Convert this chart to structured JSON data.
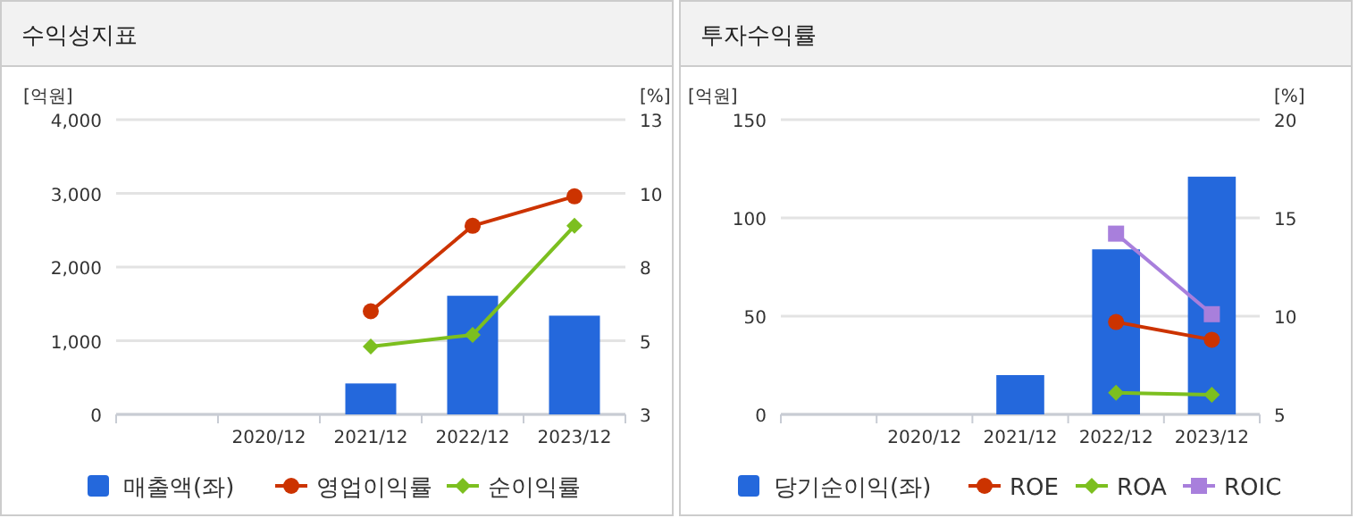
{
  "chart_data": [
    {
      "type": "bar",
      "title": "수익성지표",
      "ylabel": "[억원]",
      "y2label": "[%]",
      "categories": [
        null,
        "2020/12",
        "2021/12",
        "2022/12",
        "2023/12"
      ],
      "series": [
        {
          "name": "매출액(좌)",
          "color": "#2468dc",
          "values": [
            null,
            null,
            420,
            1610,
            1340
          ]
        },
        {
          "name": "영업이익률",
          "type": "line",
          "axis": "y2",
          "marker": "circle",
          "color": "#cc3300",
          "values": [
            null,
            null,
            6.5,
            9.4,
            10.4
          ]
        },
        {
          "name": "순이익률",
          "type": "line",
          "axis": "y2",
          "marker": "diamond",
          "color": "#7cbf1f",
          "values": [
            null,
            null,
            5.3,
            5.7,
            9.4
          ]
        }
      ],
      "ylim": [
        0,
        4000
      ],
      "yticks": [
        0,
        {
          "value": 1000,
          "label": "1,000"
        },
        {
          "value": 2000,
          "label": "2,000"
        },
        {
          "value": 3000,
          "label": "3,000"
        },
        {
          "value": 4000,
          "label": "4,000"
        }
      ],
      "y2lim": [
        3,
        13
      ],
      "y2ticks": [
        3,
        {
          "value": 5.5,
          "label": "5"
        },
        8,
        {
          "value": 10.5,
          "label": "10"
        },
        13
      ],
      "grid": "y",
      "legend": "bottom"
    },
    {
      "type": "bar",
      "title": "투자수익률",
      "ylabel": "[억원]",
      "y2label": "[%]",
      "categories": [
        null,
        "2020/12",
        "2021/12",
        "2022/12",
        "2023/12"
      ],
      "series": [
        {
          "name": "당기순이익(좌)",
          "color": "#2468dc",
          "values": [
            null,
            null,
            20,
            84,
            121
          ]
        },
        {
          "name": "ROE",
          "type": "line",
          "axis": "y2",
          "marker": "circle",
          "color": "#cc3300",
          "values": [
            null,
            null,
            null,
            9.7,
            8.8
          ]
        },
        {
          "name": "ROA",
          "type": "line",
          "axis": "y2",
          "marker": "diamond",
          "color": "#7cbf1f",
          "values": [
            null,
            null,
            null,
            6.1,
            6.0
          ]
        },
        {
          "name": "ROIC",
          "type": "line",
          "axis": "y2",
          "marker": "square",
          "color": "#a87fdc",
          "values": [
            null,
            null,
            null,
            14.2,
            10.1
          ]
        }
      ],
      "ylim": [
        0,
        150
      ],
      "yticks": [
        0,
        50,
        100,
        150
      ],
      "y2lim": [
        5,
        20
      ],
      "y2ticks": [
        5,
        10,
        15,
        20
      ],
      "grid": "y",
      "legend": "bottom"
    }
  ]
}
